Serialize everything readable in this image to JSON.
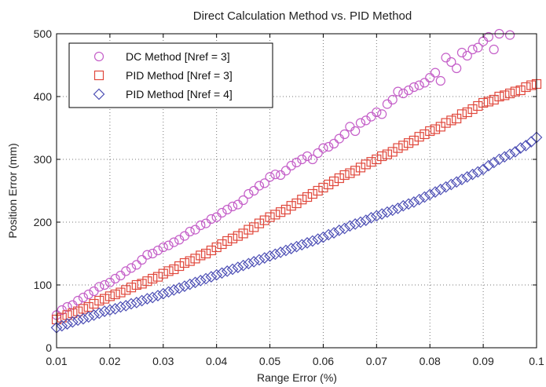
{
  "chart_data": {
    "type": "scatter",
    "title": "Direct Calculation Method vs. PID Method",
    "xlabel": "Range Error (%)",
    "ylabel": "Position Error (mm)",
    "xlim": [
      0.01,
      0.1
    ],
    "ylim": [
      0,
      500
    ],
    "xticks": [
      "0.01",
      "0.02",
      "0.03",
      "0.04",
      "0.05",
      "0.06",
      "0.07",
      "0.08",
      "0.09",
      "0.1"
    ],
    "yticks": [
      "0",
      "100",
      "200",
      "300",
      "400",
      "500"
    ],
    "grid": true,
    "legend_position": "top-left",
    "series": [
      {
        "name": "DC Method [Nref = 3]",
        "marker": "circle",
        "color": "#c45ec8",
        "points": [
          [
            0.01,
            52
          ],
          [
            0.011,
            60
          ],
          [
            0.012,
            65
          ],
          [
            0.013,
            68
          ],
          [
            0.014,
            75
          ],
          [
            0.015,
            80
          ],
          [
            0.016,
            85
          ],
          [
            0.017,
            90
          ],
          [
            0.018,
            97
          ],
          [
            0.019,
            100
          ],
          [
            0.02,
            104
          ],
          [
            0.021,
            110
          ],
          [
            0.022,
            115
          ],
          [
            0.023,
            122
          ],
          [
            0.024,
            127
          ],
          [
            0.025,
            132
          ],
          [
            0.026,
            140
          ],
          [
            0.027,
            148
          ],
          [
            0.028,
            150
          ],
          [
            0.029,
            155
          ],
          [
            0.03,
            160
          ],
          [
            0.031,
            163
          ],
          [
            0.032,
            168
          ],
          [
            0.033,
            172
          ],
          [
            0.034,
            178
          ],
          [
            0.035,
            185
          ],
          [
            0.036,
            188
          ],
          [
            0.037,
            195
          ],
          [
            0.038,
            198
          ],
          [
            0.039,
            205
          ],
          [
            0.04,
            208
          ],
          [
            0.041,
            215
          ],
          [
            0.042,
            220
          ],
          [
            0.043,
            225
          ],
          [
            0.044,
            228
          ],
          [
            0.045,
            235
          ],
          [
            0.046,
            245
          ],
          [
            0.047,
            250
          ],
          [
            0.048,
            258
          ],
          [
            0.049,
            262
          ],
          [
            0.05,
            272
          ],
          [
            0.051,
            276
          ],
          [
            0.052,
            275
          ],
          [
            0.053,
            282
          ],
          [
            0.054,
            290
          ],
          [
            0.055,
            295
          ],
          [
            0.056,
            300
          ],
          [
            0.057,
            305
          ],
          [
            0.058,
            300
          ],
          [
            0.059,
            310
          ],
          [
            0.06,
            318
          ],
          [
            0.061,
            320
          ],
          [
            0.062,
            325
          ],
          [
            0.063,
            333
          ],
          [
            0.064,
            340
          ],
          [
            0.065,
            352
          ],
          [
            0.066,
            345
          ],
          [
            0.067,
            358
          ],
          [
            0.068,
            362
          ],
          [
            0.069,
            368
          ],
          [
            0.07,
            375
          ],
          [
            0.071,
            372
          ],
          [
            0.072,
            388
          ],
          [
            0.073,
            395
          ],
          [
            0.074,
            408
          ],
          [
            0.075,
            405
          ],
          [
            0.076,
            410
          ],
          [
            0.077,
            415
          ],
          [
            0.078,
            418
          ],
          [
            0.079,
            422
          ],
          [
            0.08,
            430
          ],
          [
            0.081,
            438
          ],
          [
            0.082,
            425
          ],
          [
            0.083,
            462
          ],
          [
            0.084,
            455
          ],
          [
            0.085,
            445
          ],
          [
            0.086,
            470
          ],
          [
            0.087,
            465
          ],
          [
            0.088,
            475
          ],
          [
            0.089,
            478
          ],
          [
            0.09,
            488
          ],
          [
            0.091,
            495
          ],
          [
            0.092,
            475
          ],
          [
            0.093,
            500
          ],
          [
            0.095,
            498
          ]
        ]
      },
      {
        "name": "PID Method [Nref = 3]",
        "marker": "square",
        "color": "#e0483c",
        "points": [
          [
            0.01,
            45
          ],
          [
            0.011,
            48
          ],
          [
            0.012,
            52
          ],
          [
            0.013,
            55
          ],
          [
            0.014,
            58
          ],
          [
            0.015,
            62
          ],
          [
            0.016,
            65
          ],
          [
            0.017,
            70
          ],
          [
            0.018,
            75
          ],
          [
            0.019,
            78
          ],
          [
            0.02,
            82
          ],
          [
            0.021,
            85
          ],
          [
            0.022,
            88
          ],
          [
            0.023,
            92
          ],
          [
            0.024,
            96
          ],
          [
            0.025,
            100
          ],
          [
            0.026,
            102
          ],
          [
            0.027,
            106
          ],
          [
            0.028,
            110
          ],
          [
            0.029,
            113
          ],
          [
            0.03,
            118
          ],
          [
            0.031,
            122
          ],
          [
            0.032,
            125
          ],
          [
            0.033,
            130
          ],
          [
            0.034,
            135
          ],
          [
            0.035,
            138
          ],
          [
            0.036,
            142
          ],
          [
            0.037,
            147
          ],
          [
            0.038,
            150
          ],
          [
            0.039,
            155
          ],
          [
            0.04,
            160
          ],
          [
            0.041,
            165
          ],
          [
            0.042,
            170
          ],
          [
            0.043,
            174
          ],
          [
            0.044,
            178
          ],
          [
            0.045,
            182
          ],
          [
            0.046,
            188
          ],
          [
            0.047,
            192
          ],
          [
            0.048,
            198
          ],
          [
            0.049,
            203
          ],
          [
            0.05,
            208
          ],
          [
            0.051,
            212
          ],
          [
            0.052,
            216
          ],
          [
            0.053,
            220
          ],
          [
            0.054,
            226
          ],
          [
            0.055,
            230
          ],
          [
            0.056,
            236
          ],
          [
            0.057,
            240
          ],
          [
            0.058,
            245
          ],
          [
            0.059,
            250
          ],
          [
            0.06,
            255
          ],
          [
            0.061,
            260
          ],
          [
            0.062,
            265
          ],
          [
            0.063,
            270
          ],
          [
            0.064,
            275
          ],
          [
            0.065,
            278
          ],
          [
            0.066,
            282
          ],
          [
            0.067,
            287
          ],
          [
            0.068,
            292
          ],
          [
            0.069,
            296
          ],
          [
            0.07,
            300
          ],
          [
            0.071,
            305
          ],
          [
            0.072,
            308
          ],
          [
            0.073,
            312
          ],
          [
            0.074,
            318
          ],
          [
            0.075,
            322
          ],
          [
            0.076,
            326
          ],
          [
            0.077,
            330
          ],
          [
            0.078,
            336
          ],
          [
            0.079,
            340
          ],
          [
            0.08,
            345
          ],
          [
            0.081,
            348
          ],
          [
            0.082,
            352
          ],
          [
            0.083,
            358
          ],
          [
            0.084,
            362
          ],
          [
            0.085,
            365
          ],
          [
            0.086,
            372
          ],
          [
            0.087,
            375
          ],
          [
            0.088,
            380
          ],
          [
            0.089,
            385
          ],
          [
            0.09,
            390
          ],
          [
            0.091,
            392
          ],
          [
            0.092,
            395
          ],
          [
            0.093,
            400
          ],
          [
            0.094,
            402
          ],
          [
            0.095,
            405
          ],
          [
            0.096,
            408
          ],
          [
            0.097,
            410
          ],
          [
            0.098,
            415
          ],
          [
            0.099,
            418
          ],
          [
            0.1,
            420
          ]
        ]
      },
      {
        "name": "PID Method [Nref = 4]",
        "marker": "diamond",
        "color": "#4d4fb5",
        "points": [
          [
            0.01,
            32
          ],
          [
            0.011,
            35
          ],
          [
            0.012,
            38
          ],
          [
            0.013,
            41
          ],
          [
            0.014,
            44
          ],
          [
            0.015,
            46
          ],
          [
            0.016,
            49
          ],
          [
            0.017,
            52
          ],
          [
            0.018,
            55
          ],
          [
            0.019,
            58
          ],
          [
            0.02,
            60
          ],
          [
            0.021,
            62
          ],
          [
            0.022,
            65
          ],
          [
            0.023,
            67
          ],
          [
            0.024,
            70
          ],
          [
            0.025,
            72
          ],
          [
            0.026,
            75
          ],
          [
            0.027,
            78
          ],
          [
            0.028,
            80
          ],
          [
            0.029,
            83
          ],
          [
            0.03,
            86
          ],
          [
            0.031,
            89
          ],
          [
            0.032,
            92
          ],
          [
            0.033,
            95
          ],
          [
            0.034,
            98
          ],
          [
            0.035,
            101
          ],
          [
            0.036,
            104
          ],
          [
            0.037,
            107
          ],
          [
            0.038,
            110
          ],
          [
            0.039,
            113
          ],
          [
            0.04,
            116
          ],
          [
            0.041,
            119
          ],
          [
            0.042,
            122
          ],
          [
            0.043,
            125
          ],
          [
            0.044,
            128
          ],
          [
            0.045,
            131
          ],
          [
            0.046,
            134
          ],
          [
            0.047,
            137
          ],
          [
            0.048,
            140
          ],
          [
            0.049,
            143
          ],
          [
            0.05,
            146
          ],
          [
            0.051,
            149
          ],
          [
            0.052,
            152
          ],
          [
            0.053,
            155
          ],
          [
            0.054,
            158
          ],
          [
            0.055,
            161
          ],
          [
            0.056,
            164
          ],
          [
            0.057,
            167
          ],
          [
            0.058,
            170
          ],
          [
            0.059,
            173
          ],
          [
            0.06,
            176
          ],
          [
            0.061,
            180
          ],
          [
            0.062,
            183
          ],
          [
            0.063,
            187
          ],
          [
            0.064,
            190
          ],
          [
            0.065,
            194
          ],
          [
            0.066,
            197
          ],
          [
            0.067,
            200
          ],
          [
            0.068,
            203
          ],
          [
            0.069,
            207
          ],
          [
            0.07,
            210
          ],
          [
            0.071,
            213
          ],
          [
            0.072,
            216
          ],
          [
            0.073,
            219
          ],
          [
            0.074,
            222
          ],
          [
            0.075,
            226
          ],
          [
            0.076,
            229
          ],
          [
            0.077,
            232
          ],
          [
            0.078,
            236
          ],
          [
            0.079,
            240
          ],
          [
            0.08,
            244
          ],
          [
            0.081,
            248
          ],
          [
            0.082,
            252
          ],
          [
            0.083,
            256
          ],
          [
            0.084,
            260
          ],
          [
            0.085,
            264
          ],
          [
            0.086,
            268
          ],
          [
            0.087,
            272
          ],
          [
            0.088,
            276
          ],
          [
            0.089,
            280
          ],
          [
            0.09,
            284
          ],
          [
            0.091,
            290
          ],
          [
            0.092,
            295
          ],
          [
            0.093,
            300
          ],
          [
            0.094,
            304
          ],
          [
            0.095,
            308
          ],
          [
            0.096,
            312
          ],
          [
            0.097,
            318
          ],
          [
            0.098,
            322
          ],
          [
            0.099,
            328
          ],
          [
            0.1,
            335
          ]
        ]
      }
    ]
  }
}
